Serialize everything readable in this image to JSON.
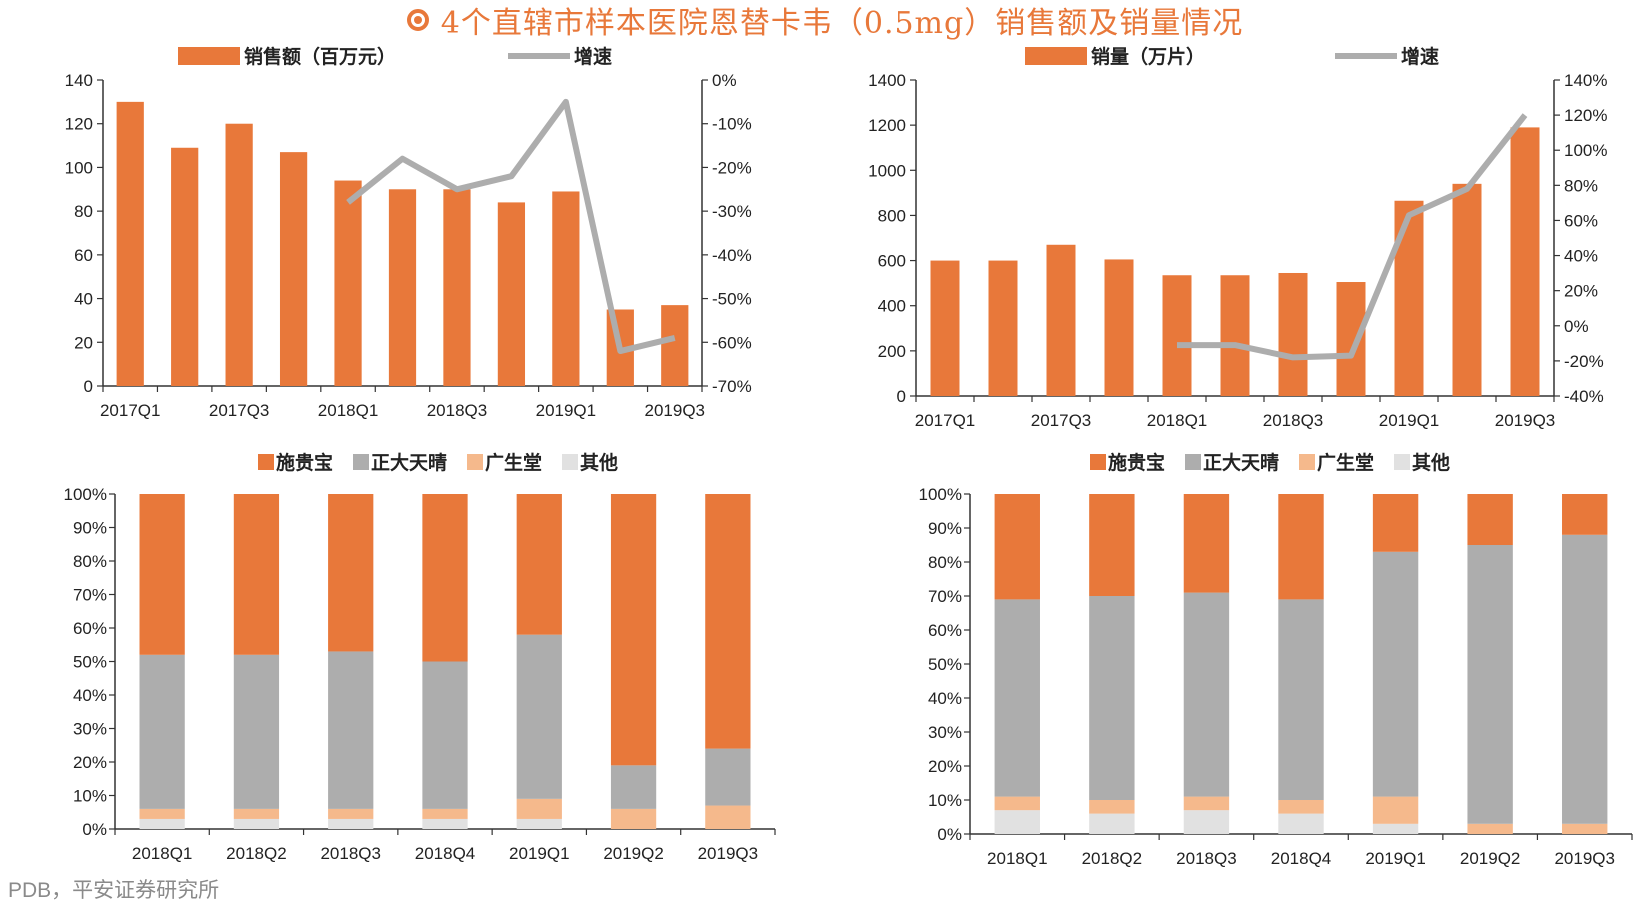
{
  "title": "4个直辖市样本医院恩替卡韦（0.5mg）销售额及销量情况",
  "source": "PDB，平安证券研究所",
  "colors": {
    "orange": "#E8783A",
    "gray": "#ADADAD",
    "peach": "#F5B98C",
    "light": "#E1E1E1",
    "axis": "#333333",
    "title": "#E8783A"
  },
  "chart_data": [
    {
      "type": "bar",
      "categories": [
        "2017Q1",
        "2017Q2",
        "2017Q3",
        "2017Q4",
        "2018Q1",
        "2018Q2",
        "2018Q3",
        "2018Q4",
        "2019Q1",
        "2019Q2",
        "2019Q3"
      ],
      "x_tick_labels": [
        "2017Q1",
        "",
        "2017Q3",
        "",
        "2018Q1",
        "",
        "2018Q3",
        "",
        "2019Q1",
        "",
        "2019Q3"
      ],
      "series": [
        {
          "name": "销售额（百万元）",
          "type": "bar",
          "axis": "left",
          "values": [
            130,
            109,
            120,
            107,
            94,
            90,
            90,
            84,
            89,
            35,
            37
          ]
        },
        {
          "name": "增速",
          "type": "line",
          "axis": "right",
          "values": [
            null,
            null,
            null,
            null,
            -28,
            -18,
            -25,
            -22,
            -5,
            -62,
            -59
          ]
        }
      ],
      "ylim": [
        0,
        140
      ],
      "yticks": [
        0,
        20,
        40,
        60,
        80,
        100,
        120,
        140
      ],
      "y2lim": [
        -70,
        0
      ],
      "y2ticks": [
        "-70%",
        "-60%",
        "-50%",
        "-40%",
        "-30%",
        "-20%",
        "-10%",
        "0%"
      ],
      "legend": "top",
      "grid": false
    },
    {
      "type": "bar",
      "categories": [
        "2017Q1",
        "2017Q2",
        "2017Q3",
        "2017Q4",
        "2018Q1",
        "2018Q2",
        "2018Q3",
        "2018Q4",
        "2019Q1",
        "2019Q2",
        "2019Q3"
      ],
      "x_tick_labels": [
        "2017Q1",
        "",
        "2017Q3",
        "",
        "2018Q1",
        "",
        "2018Q3",
        "",
        "2019Q1",
        "",
        "2019Q3"
      ],
      "series": [
        {
          "name": "销量（万片）",
          "type": "bar",
          "axis": "left",
          "values": [
            600,
            600,
            670,
            605,
            535,
            535,
            545,
            505,
            865,
            940,
            1190
          ]
        },
        {
          "name": "增速",
          "type": "line",
          "axis": "right",
          "values": [
            null,
            null,
            null,
            null,
            -11,
            -11,
            -18,
            -17,
            63,
            78,
            120
          ]
        }
      ],
      "ylim": [
        0,
        1400
      ],
      "yticks": [
        0,
        200,
        400,
        600,
        800,
        1000,
        1200,
        1400
      ],
      "y2lim": [
        -40,
        140
      ],
      "y2ticks": [
        "-40%",
        "-20%",
        "0%",
        "20%",
        "40%",
        "60%",
        "80%",
        "100%",
        "120%",
        "140%"
      ],
      "legend": "top",
      "grid": false
    },
    {
      "type": "bar",
      "stacked": true,
      "categories": [
        "2018Q1",
        "2018Q2",
        "2018Q3",
        "2018Q4",
        "2019Q1",
        "2019Q2",
        "2019Q3"
      ],
      "series": [
        {
          "name": "其他",
          "values": [
            3,
            3,
            3,
            3,
            3,
            0,
            0
          ]
        },
        {
          "name": "广生堂",
          "values": [
            3,
            3,
            3,
            3,
            6,
            6,
            7
          ]
        },
        {
          "name": "正大天晴",
          "values": [
            46,
            46,
            47,
            44,
            49,
            13,
            17
          ]
        },
        {
          "name": "施贵宝",
          "values": [
            48,
            48,
            47,
            50,
            42,
            81,
            76
          ]
        }
      ],
      "legend_order": [
        "施贵宝",
        "正大天晴",
        "广生堂",
        "其他"
      ],
      "ylim": [
        0,
        100
      ],
      "yticks": [
        "0%",
        "10%",
        "20%",
        "30%",
        "40%",
        "50%",
        "60%",
        "70%",
        "80%",
        "90%",
        "100%"
      ],
      "legend": "top",
      "grid": false
    },
    {
      "type": "bar",
      "stacked": true,
      "categories": [
        "2018Q1",
        "2018Q2",
        "2018Q3",
        "2018Q4",
        "2019Q1",
        "2019Q2",
        "2019Q3"
      ],
      "series": [
        {
          "name": "其他",
          "values": [
            7,
            6,
            7,
            6,
            3,
            0,
            0
          ]
        },
        {
          "name": "广生堂",
          "values": [
            4,
            4,
            4,
            4,
            8,
            3,
            3
          ]
        },
        {
          "name": "正大天晴",
          "values": [
            58,
            60,
            60,
            59,
            72,
            82,
            85
          ]
        },
        {
          "name": "施贵宝",
          "values": [
            31,
            30,
            29,
            31,
            17,
            15,
            12
          ]
        }
      ],
      "legend_order": [
        "施贵宝",
        "正大天晴",
        "广生堂",
        "其他"
      ],
      "ylim": [
        0,
        100
      ],
      "yticks": [
        "0%",
        "10%",
        "20%",
        "30%",
        "40%",
        "50%",
        "60%",
        "70%",
        "80%",
        "90%",
        "100%"
      ],
      "legend": "top",
      "grid": false
    }
  ]
}
